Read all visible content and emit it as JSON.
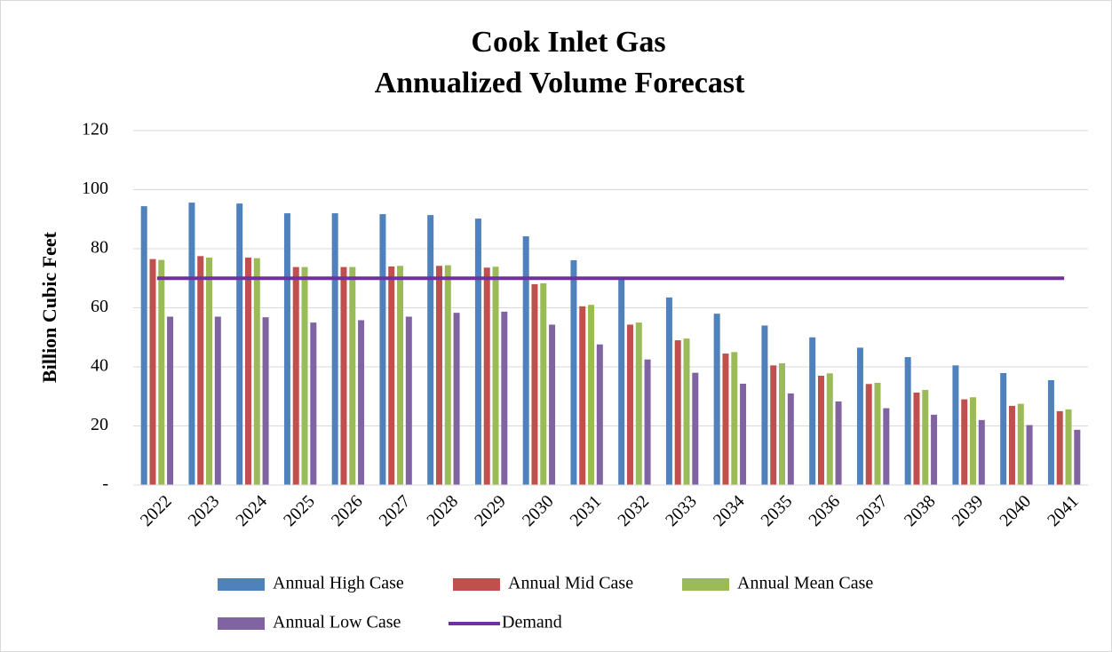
{
  "chart_data": {
    "type": "bar",
    "title": [
      "Cook Inlet Gas",
      "Annualized Volume Forecast"
    ],
    "y_label": "Billion Cubic Feet",
    "categories": [
      "2022",
      "2023",
      "2024",
      "2025",
      "2026",
      "2027",
      "2028",
      "2029",
      "2030",
      "2031",
      "2032",
      "2033",
      "2034",
      "2035",
      "2036",
      "2037",
      "2038",
      "2039",
      "2040",
      "2041"
    ],
    "series": [
      {
        "name": "Annual High Case",
        "color": "#4f81bd",
        "values": [
          94.4,
          95.6,
          95.3,
          92,
          92,
          91.7,
          91.4,
          90.2,
          84.2,
          76.1,
          69.8,
          63.5,
          58,
          54,
          50,
          46.5,
          43.3,
          40.5,
          37.9,
          35.5
        ]
      },
      {
        "name": "Annual Mid Case",
        "color": "#c0504d",
        "values": [
          76.5,
          77.5,
          77,
          73.8,
          73.8,
          74,
          74.2,
          73.6,
          68,
          60.5,
          54.3,
          49,
          44.5,
          40.5,
          37,
          34.2,
          31.3,
          29,
          26.8,
          25
        ]
      },
      {
        "name": "Annual Mean Case",
        "color": "#9bbb59",
        "values": [
          76.2,
          77,
          76.8,
          73.8,
          73.8,
          74.2,
          74.4,
          73.9,
          68.3,
          61,
          55,
          49.6,
          45,
          41.2,
          37.8,
          34.6,
          32.2,
          29.7,
          27.5,
          25.6
        ]
      },
      {
        "name": "Annual Low Case",
        "color": "#8064a2",
        "values": [
          57,
          57,
          56.8,
          55,
          55.8,
          57,
          58.3,
          58.7,
          54.3,
          47.6,
          42.5,
          38,
          34.3,
          31,
          28.3,
          26,
          23.8,
          22,
          20.3,
          18.7
        ]
      },
      {
        "name": "Demand",
        "color": "#7030a0",
        "type": "line",
        "values": [
          70,
          70,
          70,
          70,
          70,
          70,
          70,
          70,
          70,
          70,
          70,
          70,
          70,
          70,
          70,
          70,
          70,
          70,
          70,
          70
        ]
      }
    ],
    "ylim": [
      0,
      120
    ],
    "yticks": [
      {
        "value": 0,
        "label": "-"
      },
      20,
      40,
      60,
      80,
      100,
      120
    ],
    "grid": true
  }
}
